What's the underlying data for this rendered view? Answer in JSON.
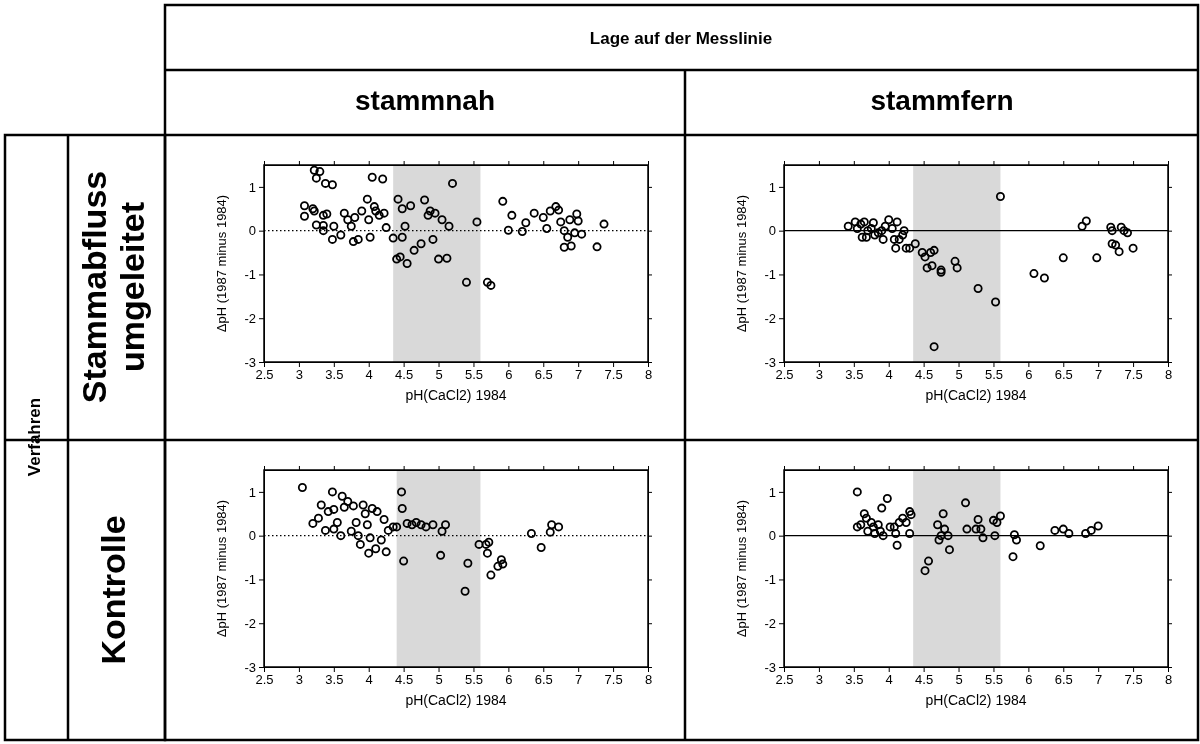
{
  "chart_data": [
    {
      "type": "other",
      "title": "Lage auf der Messlinie",
      "annotations": [
        "stammnah",
        "stammfern",
        "Verfahren",
        "Stammabfluss umgeleitet",
        "Kontrolle"
      ]
    },
    {
      "type": "scatter",
      "xlabel": "pH(CaCl2) 1984",
      "ylabel": "ΔpH (1987 minus 1984)",
      "xlim": [
        2.5,
        8
      ],
      "ylim": [
        -3,
        1.5
      ],
      "xticks": [
        2.5,
        3,
        3.5,
        4,
        4.5,
        5,
        5.5,
        6,
        6.5,
        7,
        7.5,
        8
      ],
      "yticks": [
        -3,
        -2,
        -1,
        0,
        1
      ],
      "grid": false,
      "marker": "circle",
      "bands": [
        {
          "axis": "x",
          "from": 4.35,
          "to": 5.6,
          "color": "#d9d9d9"
        }
      ],
      "ref_lines": [
        {
          "axis": "y",
          "value": 0,
          "color": "#000000",
          "line_style": "dotted"
        }
      ],
      "series": [
        {
          "color": "#000000",
          "x": [
            3.08,
            3.08,
            3.2,
            3.22,
            3.25,
            3.22,
            3.25,
            3.3,
            3.38,
            3.48,
            3.35,
            3.4,
            3.35,
            3.35,
            3.48,
            3.5,
            3.6,
            3.65,
            3.7,
            3.75,
            3.8,
            3.78,
            3.85,
            3.9,
            3.98,
            4.0,
            4.02,
            4.05,
            4.08,
            4.1,
            4.15,
            4.2,
            4.22,
            4.25,
            4.35,
            4.4,
            4.45,
            4.42,
            4.48,
            4.48,
            4.52,
            4.55,
            4.6,
            4.65,
            4.75,
            4.8,
            4.85,
            4.88,
            4.92,
            4.95,
            5.0,
            5.05,
            5.12,
            5.15,
            5.2,
            5.4,
            5.55,
            5.7,
            5.75,
            5.92,
            6.0,
            6.05,
            6.2,
            6.25,
            6.37,
            6.5,
            6.55,
            6.6,
            6.68,
            6.72,
            6.75,
            6.8,
            6.8,
            6.85,
            6.88,
            6.9,
            6.95,
            6.98,
            7.0,
            7.05,
            7.27,
            7.37
          ],
          "values": [
            0.57,
            0.33,
            0.5,
            0.45,
            0.13,
            1.38,
            1.2,
            1.35,
            1.08,
            1.05,
            0.35,
            0.38,
            0.12,
            0,
            -0.2,
            0.1,
            -0.1,
            0.4,
            0.25,
            0.1,
            0.3,
            -0.25,
            -0.2,
            0.45,
            0.72,
            0.25,
            -0.15,
            1.22,
            0.55,
            0.45,
            0.35,
            1.18,
            0.4,
            0.07,
            -0.17,
            -0.65,
            -0.6,
            0.72,
            0.5,
            -0.15,
            0.1,
            -0.75,
            0.57,
            -0.45,
            -0.3,
            0.7,
            0.35,
            0.45,
            -0.2,
            0.4,
            -0.65,
            0.25,
            -0.63,
            0.1,
            1.08,
            -1.18,
            0.2,
            -1.18,
            -1.25,
            0.67,
            0.01,
            0.35,
            -0.02,
            0.18,
            0.4,
            0.3,
            0.05,
            0.45,
            0.55,
            0.47,
            0.2,
            0,
            -0.38,
            -0.15,
            0.25,
            -0.35,
            -0.05,
            0.38,
            0.22,
            -0.08,
            -0.37,
            0.15
          ]
        }
      ]
    },
    {
      "type": "scatter",
      "xlabel": "pH(CaCl2) 1984",
      "ylabel": "ΔpH (1987 minus 1984)",
      "xlim": [
        2.5,
        8
      ],
      "ylim": [
        -3,
        1.5
      ],
      "xticks": [
        2.5,
        3,
        3.5,
        4,
        4.5,
        5,
        5.5,
        6,
        6.5,
        7,
        7.5,
        8
      ],
      "yticks": [
        -3,
        -2,
        -1,
        0,
        1
      ],
      "grid": false,
      "marker": "circle",
      "bands": [
        {
          "axis": "x",
          "from": 4.35,
          "to": 5.6,
          "color": "#d9d9d9"
        }
      ],
      "ref_lines": [
        {
          "axis": "y",
          "value": 0,
          "color": "#000000",
          "line_style": "solid"
        }
      ],
      "series": [
        {
          "color": "#000000",
          "x": [
            3.42,
            3.52,
            3.55,
            3.6,
            3.62,
            3.65,
            3.68,
            3.7,
            3.75,
            3.78,
            3.8,
            3.85,
            3.9,
            3.92,
            3.95,
            4.0,
            4.05,
            4.08,
            4.1,
            4.12,
            4.15,
            4.2,
            4.22,
            4.25,
            4.3,
            4.38,
            4.48,
            4.52,
            4.55,
            4.6,
            4.62,
            4.65,
            4.65,
            4.75,
            4.75,
            4.95,
            4.98,
            5.28,
            5.53,
            5.6,
            6.08,
            6.23,
            6.5,
            6.77,
            6.83,
            6.98,
            7.18,
            7.2,
            7.2,
            7.25,
            7.3,
            7.33,
            7.37,
            7.42,
            7.5
          ],
          "values": [
            0.1,
            0.2,
            0.05,
            0.15,
            -0.15,
            0.2,
            -0.15,
            0,
            0.05,
            0.18,
            -0.1,
            -0.05,
            0,
            -0.2,
            0.1,
            0.25,
            0.05,
            -0.2,
            -0.4,
            0.2,
            -0.2,
            -0.1,
            0,
            -0.4,
            -0.4,
            -0.3,
            -0.5,
            -0.6,
            -0.85,
            -0.5,
            -0.8,
            -0.45,
            -2.65,
            -0.95,
            -0.9,
            -0.7,
            -0.85,
            -1.32,
            -1.63,
            0.78,
            -0.98,
            -1.08,
            -0.62,
            0.1,
            0.22,
            -0.62,
            0.08,
            -0.3,
            0,
            -0.33,
            -0.48,
            0.08,
            0,
            -0.05,
            -0.4
          ]
        }
      ]
    },
    {
      "type": "scatter",
      "xlabel": "pH(CaCl2) 1984",
      "ylabel": "ΔpH (1987 minus 1984)",
      "xlim": [
        2.5,
        8
      ],
      "ylim": [
        -3,
        1.5
      ],
      "xticks": [
        2.5,
        3,
        3.5,
        4,
        4.5,
        5,
        5.5,
        6,
        6.5,
        7,
        7.5,
        8
      ],
      "yticks": [
        -3,
        -2,
        -1,
        0,
        1
      ],
      "grid": false,
      "marker": "circle",
      "bands": [
        {
          "axis": "x",
          "from": 4.4,
          "to": 5.6,
          "color": "#d9d9d9"
        }
      ],
      "ref_lines": [
        {
          "axis": "y",
          "value": 0,
          "color": "#000000",
          "line_style": "dotted"
        }
      ],
      "series": [
        {
          "color": "#000000",
          "x": [
            3.05,
            3.2,
            3.28,
            3.32,
            3.38,
            3.42,
            3.48,
            3.5,
            3.5,
            3.55,
            3.6,
            3.62,
            3.65,
            3.7,
            3.75,
            3.78,
            3.82,
            3.85,
            3.88,
            3.92,
            3.95,
            3.98,
            4.0,
            4.02,
            4.05,
            4.1,
            4.12,
            4.18,
            4.22,
            4.25,
            4.28,
            4.35,
            4.4,
            4.47,
            4.48,
            4.5,
            4.55,
            4.62,
            4.68,
            4.75,
            4.82,
            4.92,
            5.03,
            5.05,
            5.1,
            5.38,
            5.42,
            5.58,
            5.68,
            5.7,
            5.72,
            5.75,
            5.85,
            5.9,
            5.92,
            6.33,
            6.47,
            6.6,
            6.62,
            6.72
          ],
          "values": [
            1.1,
            0.28,
            0.4,
            0.7,
            0.12,
            0.55,
            1.0,
            0.6,
            0.15,
            0.3,
            0,
            0.9,
            0.65,
            0.78,
            0.1,
            0.68,
            0.3,
            0,
            -0.2,
            0.7,
            0.5,
            0.25,
            -0.4,
            -0.05,
            0.62,
            -0.3,
            0.55,
            -0.1,
            0.37,
            -0.37,
            0.12,
            0.2,
            0.2,
            1.0,
            0.62,
            -0.58,
            0.28,
            0.25,
            0.3,
            0.25,
            0.2,
            0.25,
            -0.45,
            0.1,
            0.25,
            -1.27,
            -0.63,
            -0.2,
            -0.2,
            -0.4,
            -0.15,
            -0.9,
            -0.7,
            -0.55,
            -0.65,
            0.05,
            -0.27,
            0.08,
            0.25,
            0.2
          ]
        }
      ]
    },
    {
      "type": "scatter",
      "xlabel": "pH(CaCl2) 1984",
      "ylabel": "ΔpH (1987 minus 1984)",
      "xlim": [
        2.5,
        8
      ],
      "ylim": [
        -3,
        1.5
      ],
      "xticks": [
        2.5,
        3,
        3.5,
        4,
        4.5,
        5,
        5.5,
        6,
        6.5,
        7,
        7.5,
        8
      ],
      "yticks": [
        -3,
        -2,
        -1,
        0,
        1
      ],
      "grid": false,
      "marker": "circle",
      "bands": [
        {
          "axis": "x",
          "from": 4.35,
          "to": 5.6,
          "color": "#d9d9d9"
        }
      ],
      "ref_lines": [
        {
          "axis": "y",
          "value": 0,
          "color": "#000000",
          "line_style": "solid"
        }
      ],
      "series": [
        {
          "color": "#000000",
          "x": [
            3.55,
            3.55,
            3.6,
            3.65,
            3.68,
            3.7,
            3.75,
            3.78,
            3.8,
            3.85,
            3.88,
            3.9,
            3.92,
            3.98,
            4.02,
            4.08,
            4.1,
            4.12,
            4.15,
            4.2,
            4.25,
            4.3,
            4.32,
            4.3,
            4.52,
            4.57,
            4.7,
            4.72,
            4.75,
            4.78,
            4.8,
            4.85,
            4.87,
            5.1,
            5.12,
            5.25,
            5.28,
            5.32,
            5.35,
            5.5,
            5.52,
            5.55,
            5.6,
            5.78,
            5.8,
            5.83,
            6.17,
            6.38,
            6.5,
            6.58,
            6.82,
            6.9,
            7.0
          ],
          "values": [
            1.0,
            0.2,
            0.25,
            0.5,
            0.4,
            0.1,
            0.3,
            0.2,
            0.05,
            0.25,
            0.1,
            0.63,
            0,
            0.85,
            0.2,
            0.2,
            0.05,
            -0.22,
            0.3,
            0.4,
            0.3,
            0.55,
            0.48,
            0.05,
            -0.8,
            -0.58,
            0.25,
            -0.1,
            0,
            0.5,
            0.15,
            0,
            -0.32,
            0.75,
            0.15,
            0.15,
            0.37,
            0.15,
            -0.05,
            0.35,
            0,
            0.3,
            0.45,
            -0.48,
            0.02,
            -0.1,
            -0.23,
            0.12,
            0.15,
            0.05,
            0.05,
            0.12,
            0.22
          ]
        }
      ]
    }
  ]
}
